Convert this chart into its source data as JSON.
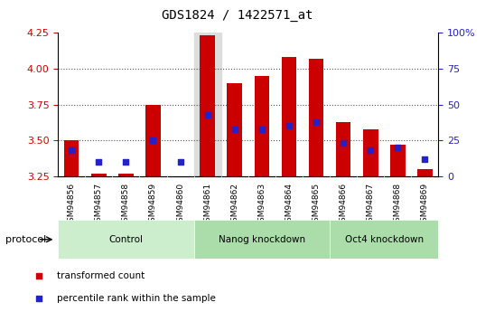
{
  "title": "GDS1824 / 1422571_at",
  "samples": [
    "GSM94856",
    "GSM94857",
    "GSM94858",
    "GSM94859",
    "GSM94860",
    "GSM94861",
    "GSM94862",
    "GSM94863",
    "GSM94864",
    "GSM94865",
    "GSM94866",
    "GSM94867",
    "GSM94868",
    "GSM94869"
  ],
  "transformed_count": [
    3.5,
    3.27,
    3.27,
    3.75,
    3.25,
    4.23,
    3.9,
    3.95,
    4.08,
    4.07,
    3.63,
    3.58,
    3.47,
    3.3
  ],
  "percentile_rank": [
    18,
    10,
    10,
    25,
    10,
    43,
    33,
    33,
    35,
    38,
    23,
    18,
    20,
    12
  ],
  "y_min": 3.25,
  "y_max": 4.25,
  "y_ticks": [
    3.25,
    3.5,
    3.75,
    4.0,
    4.25
  ],
  "right_y_ticks": [
    0,
    25,
    50,
    75,
    100
  ],
  "right_y_labels": [
    "0",
    "25",
    "50",
    "75",
    "100%"
  ],
  "bar_color": "#cc0000",
  "blue_color": "#2222cc",
  "groups": [
    {
      "label": "Control",
      "start": 0,
      "end": 5,
      "color": "#cceecc"
    },
    {
      "label": "Nanog knockdown",
      "start": 5,
      "end": 10,
      "color": "#aaddaa"
    },
    {
      "label": "Oct4 knockdown",
      "start": 10,
      "end": 14,
      "color": "#aaddaa"
    }
  ],
  "highlighted_sample": "GSM94861",
  "highlight_bg": "#dddddd",
  "bar_width": 0.55,
  "title_fontsize": 10,
  "axis_label_color_left": "#cc0000",
  "axis_label_color_right": "#2222cc",
  "dot_size": 22,
  "tick_label_bg": "#cccccc",
  "legend_items": [
    {
      "label": "transformed count",
      "color": "#cc0000",
      "marker": "s"
    },
    {
      "label": "percentile rank within the sample",
      "color": "#2222cc",
      "marker": "s"
    }
  ],
  "grid_yticks": [
    3.5,
    3.75,
    4.0
  ],
  "dotted_color": "#555555"
}
